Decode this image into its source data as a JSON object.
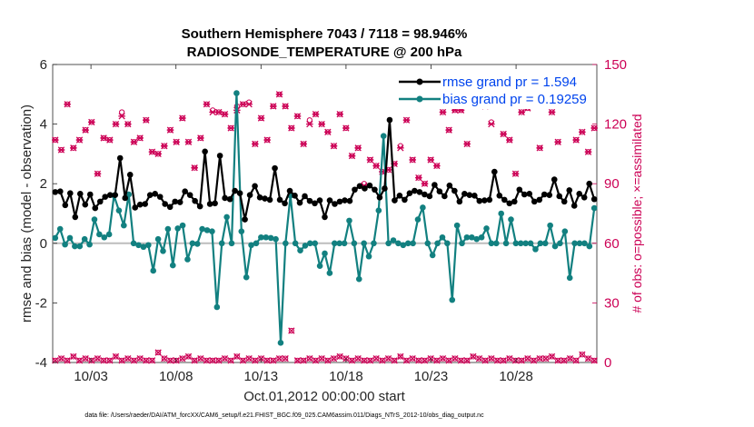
{
  "chart_data": {
    "type": "line",
    "title_line1": "Southern Hemisphere 7043 / 7118 = 98.946%",
    "title_line2": "RADIOSONDE_TEMPERATURE @ 200 hPa",
    "xlabel": "Oct.01,2012 00:00:00 start",
    "ylabel_left": "rmse and bias (model - observation)",
    "ylabel_right": "# of obs: o=possible; ×=assimilated",
    "xlim": [
      0.75,
      32.75
    ],
    "ylim_left": [
      -4,
      6
    ],
    "ylim_right": [
      0,
      150
    ],
    "x_ticks": [
      3,
      8,
      13,
      18,
      23,
      28
    ],
    "x_tick_labels": [
      "10/03",
      "10/08",
      "10/13",
      "10/18",
      "10/23",
      "10/28"
    ],
    "yticks_left": [
      -4,
      -2,
      0,
      2,
      4,
      6
    ],
    "yticks_right": [
      0,
      30,
      60,
      90,
      120,
      150
    ],
    "grid": false,
    "legend_position": "top-right",
    "footnote": "data file: /Users/raeder/DAI/ATM_forcXX/CAM6_setup/f.e21.FHIST_BGC.f09_025.CAM6assim.011/Diags_NTrS_2012-10/obs_diag_output.nc",
    "series": [
      {
        "name": "rmse grand pr = 1.594",
        "color": "#000000",
        "y": [
          1.72,
          1.74,
          1.28,
          1.68,
          0.88,
          1.66,
          1.3,
          1.64,
          1.18,
          1.4,
          1.56,
          1.62,
          1.62,
          2.86,
          1.52,
          2.3,
          1.2,
          1.3,
          1.32,
          1.62,
          1.66,
          1.56,
          1.32,
          1.22,
          1.4,
          1.38,
          1.74,
          1.62,
          1.42,
          1.24,
          3.08,
          1.32,
          1.34,
          2.94,
          1.52,
          1.48,
          1.76,
          1.68,
          0.8,
          1.62,
          1.92,
          1.54,
          1.5,
          1.46,
          2.52,
          1.46,
          1.34,
          1.76,
          1.6,
          1.36,
          1.58,
          1.42,
          1.34,
          1.44,
          0.88,
          1.44,
          1.32,
          1.4,
          1.44,
          1.42,
          1.8,
          1.92,
          1.84,
          1.94,
          1.8,
          1.54,
          1.84,
          4.14,
          1.44,
          1.6,
          1.46,
          1.68,
          1.76,
          1.72,
          1.64,
          1.58,
          1.96,
          1.74,
          1.58,
          1.94,
          1.76,
          1.4,
          1.66,
          1.62,
          1.6,
          1.42,
          1.44,
          1.46,
          2.4,
          1.6,
          1.46,
          1.34,
          1.4,
          1.8,
          1.64,
          1.66,
          1.4,
          1.46,
          1.64,
          1.62,
          2.14,
          1.58,
          1.4,
          1.78,
          1.26,
          1.66,
          1.54,
          2.0,
          1.48
        ]
      },
      {
        "name": "bias grand pr = 0.19259",
        "color": "#128080",
        "y": [
          0.18,
          0.48,
          -0.04,
          0.18,
          -0.1,
          -0.1,
          0.14,
          -0.04,
          0.8,
          0.3,
          0.2,
          0.3,
          1.6,
          1.1,
          0.6,
          1.64,
          0.0,
          -0.06,
          -0.12,
          -0.06,
          -0.92,
          0.14,
          -0.26,
          0.48,
          -0.74,
          0.5,
          0.6,
          -0.54,
          0.0,
          -0.02,
          0.48,
          0.44,
          0.4,
          -2.14,
          0.0,
          0.88,
          0.0,
          5.04,
          0.4,
          -1.14,
          -0.06,
          0.0,
          0.2,
          0.2,
          0.18,
          0.14,
          -3.34,
          0.0,
          1.6,
          0.0,
          -0.24,
          -0.08,
          0.0,
          0.0,
          -0.76,
          -0.34,
          -1.0,
          0.0,
          0.0,
          0.0,
          0.76,
          0.0,
          -1.2,
          0.0,
          -0.44,
          0.0,
          1.1,
          3.6,
          0.0,
          0.1,
          0.0,
          -0.06,
          0.0,
          0.0,
          0.8,
          1.2,
          0.0,
          -0.4,
          0.0,
          0.2,
          0.0,
          -1.9,
          0.6,
          0.0,
          0.2,
          0.2,
          0.14,
          0.2,
          0.5,
          0.0,
          0.0,
          1.0,
          0.0,
          0.8,
          0.0,
          0.0,
          0.0,
          0.0,
          -0.2,
          0.0,
          0.0,
          0.6,
          -0.1,
          0.0,
          0.4,
          -1.16,
          0.0,
          0.0,
          0.0,
          -0.1,
          1.18
        ]
      },
      {
        "name": "possible",
        "color": "#cc0055",
        "marker": "o",
        "y": [
          112,
          107,
          130,
          108,
          112,
          117,
          121,
          95,
          113,
          112,
          120,
          126,
          120,
          111,
          113,
          122,
          106,
          105,
          109,
          117,
          111,
          123,
          111,
          98,
          113,
          130,
          127,
          126,
          125,
          118,
          129,
          130,
          131,
          110,
          123,
          112,
          129,
          135,
          129,
          118,
          124,
          110,
          122,
          125,
          120,
          116,
          109,
          125,
          118,
          104,
          108,
          90,
          102,
          99,
          96,
          97,
          100,
          109,
          122,
          102,
          93,
          90,
          102,
          99,
          126,
          117,
          127,
          127,
          110,
          137,
          132,
          129,
          121,
          130,
          115,
          112,
          95,
          126,
          128,
          130,
          108,
          132,
          126,
          111,
          133,
          131,
          112,
          116,
          106,
          118
        ]
      },
      {
        "name": "assimilated",
        "color": "#cc0055",
        "marker": "x",
        "y": [
          112,
          107,
          130,
          108,
          112,
          117,
          121,
          95,
          113,
          112,
          120,
          124,
          120,
          111,
          113,
          122,
          106,
          105,
          109,
          117,
          111,
          123,
          111,
          98,
          113,
          130,
          126,
          126,
          125,
          118,
          127,
          130,
          130,
          110,
          123,
          112,
          129,
          135,
          129,
          118,
          124,
          110,
          120,
          125,
          120,
          116,
          109,
          125,
          118,
          104,
          108,
          89,
          102,
          99,
          96,
          97,
          100,
          108,
          122,
          102,
          93,
          90,
          102,
          99,
          126,
          117,
          127,
          127,
          110,
          137,
          132,
          129,
          120,
          130,
          115,
          112,
          95,
          126,
          128,
          130,
          108,
          130,
          126,
          111,
          133,
          131,
          112,
          116,
          106,
          118
        ]
      },
      {
        "name": "possible-low",
        "color": "#cc0055",
        "marker": "o",
        "y": [
          1,
          2,
          1,
          3,
          1,
          2,
          1,
          2,
          1,
          1,
          3,
          1,
          2,
          1,
          2,
          1,
          1,
          5,
          2,
          1,
          1,
          2,
          3,
          1,
          2,
          1,
          1,
          1,
          2,
          1,
          3,
          1,
          2,
          1,
          2,
          1,
          1,
          2,
          2,
          16,
          1,
          1,
          2,
          1,
          2,
          1,
          2,
          3,
          2,
          1,
          2,
          1,
          1,
          2,
          1,
          2,
          1,
          3,
          1,
          2,
          1,
          1,
          2,
          1,
          2,
          1,
          2,
          1,
          1,
          3,
          2,
          1,
          2,
          1,
          1,
          2,
          1,
          1,
          2,
          1,
          2,
          2,
          3,
          1,
          1,
          2,
          1,
          4,
          2,
          1
        ]
      }
    ]
  }
}
